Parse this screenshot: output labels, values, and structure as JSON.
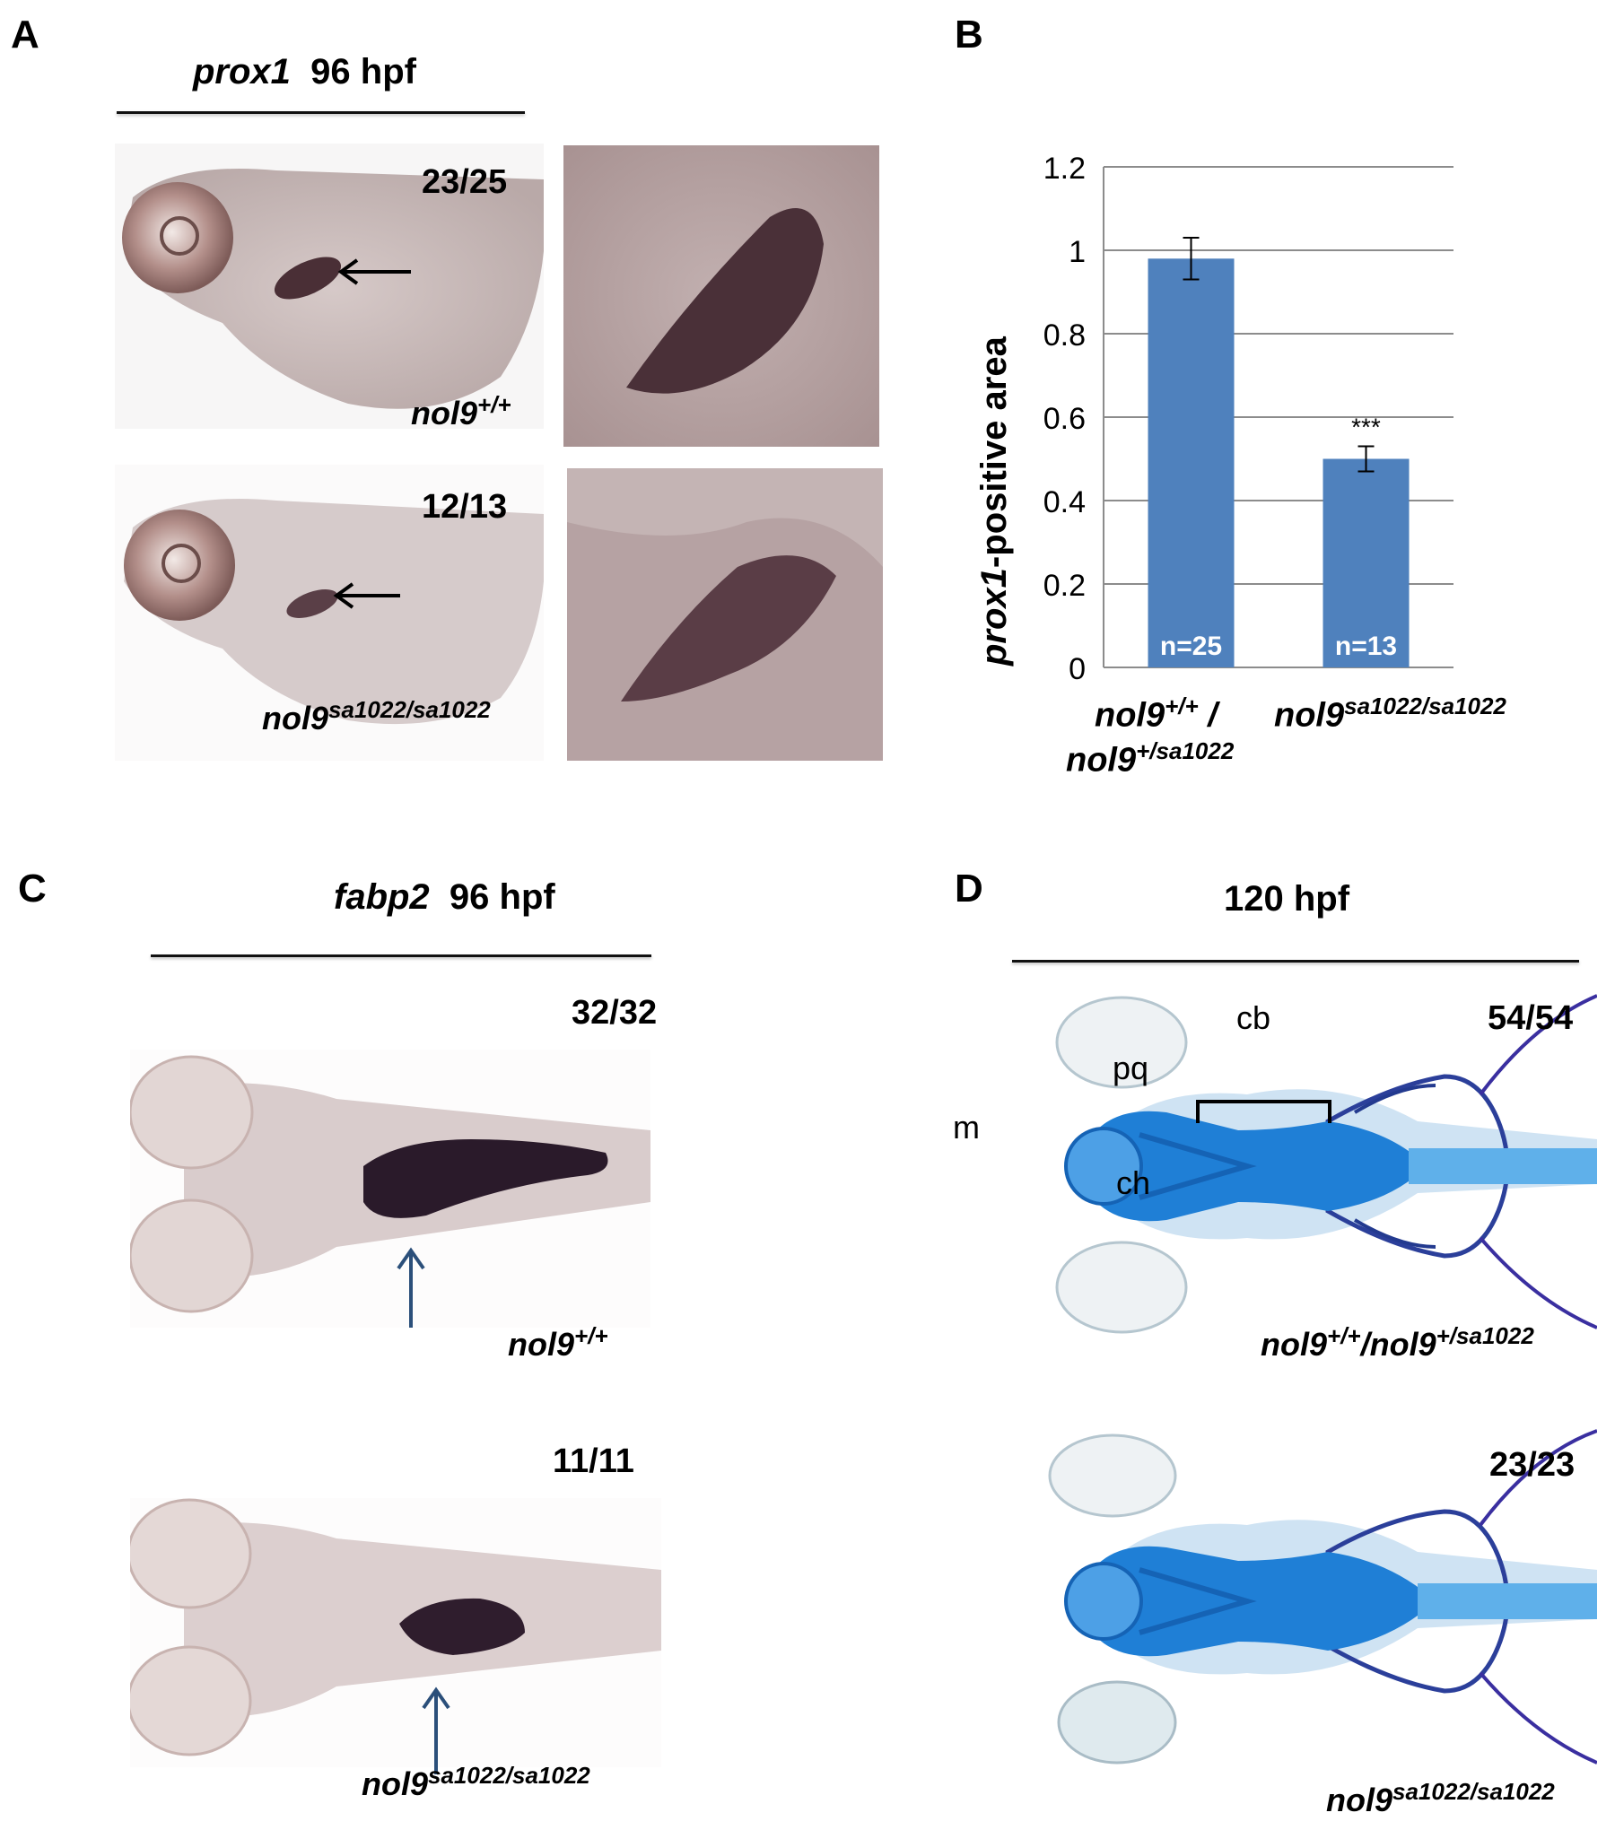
{
  "panel_labels": {
    "a": "A",
    "b": "B",
    "c": "C",
    "d": "D"
  },
  "panel_a": {
    "title_gene": "prox1",
    "title_stage": "96 hpf",
    "row1": {
      "count": "23/25",
      "genotype_base": "nol9",
      "genotype_sup": "+/+"
    },
    "row2": {
      "count": "12/13",
      "genotype_base": "nol9",
      "genotype_sup": "sa1022/sa1022"
    }
  },
  "panel_b": {
    "ylabel_gene": "prox1",
    "ylabel_rest": "-positive area",
    "significance": "***",
    "n_labels": [
      "n=25",
      "n=13"
    ],
    "x_label_1_line1_base": "nol9",
    "x_label_1_line1_sup": "+/+",
    "x_label_1_line1_sep": " /",
    "x_label_1_line2_base": "nol9",
    "x_label_1_line2_sup": "+/sa1022",
    "x_label_2_base": "nol9",
    "x_label_2_sup": "sa1022/sa1022"
  },
  "chart_data": {
    "type": "bar",
    "categories": [
      "nol9+/+ / nol9+/sa1022",
      "nol9sa1022/sa1022"
    ],
    "values": [
      0.98,
      0.5
    ],
    "errors": [
      0.05,
      0.03
    ],
    "ylabel": "prox1-positive area",
    "ylim": [
      0,
      1.2
    ],
    "yticks": [
      "0",
      "0.2",
      "0.4",
      "0.6",
      "0.8",
      "1",
      "1.2"
    ],
    "bar_color": "#4f81bd",
    "grid": true
  },
  "panel_c": {
    "title_gene": "fabp2",
    "title_stage": "96 hpf",
    "row1": {
      "count": "32/32",
      "genotype_base": "nol9",
      "genotype_sup": "+/+"
    },
    "row2": {
      "count": "11/11",
      "genotype_base": "nol9",
      "genotype_sup": "sa1022/sa1022"
    }
  },
  "panel_d": {
    "title": "120 hpf",
    "labels": {
      "m": "m",
      "pq": "pq",
      "cb": "cb",
      "ch": "ch"
    },
    "row1": {
      "count": "54/54",
      "g1_base": "nol9",
      "g1_sup": "+/+",
      "g2_base": "/nol9",
      "g2_sup": "+/sa1022"
    },
    "row2": {
      "count": "23/23",
      "genotype_base": "nol9",
      "genotype_sup": "sa1022/sa1022"
    }
  },
  "colors": {
    "stain_purple": "#3a2030",
    "alcian_blue": "#1f7fd6",
    "arrow_blue": "#2b4f7a"
  }
}
